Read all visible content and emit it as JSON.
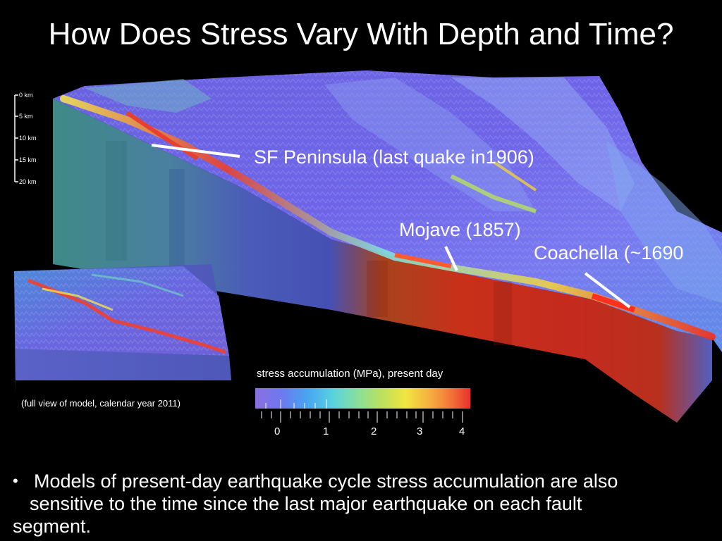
{
  "slide": {
    "title": "How Does Stress Vary With Depth and Time?",
    "depth_scale": [
      "0 km",
      "5 km",
      "10 km",
      "15 km",
      "20 km"
    ],
    "callouts": {
      "sf": "SF Peninsula (last quake in1906)",
      "mojave": "Mojave (1857)",
      "coachella": "Coachella (~1690"
    },
    "inset_caption": "(full view of model, calendar year 2011)",
    "colorbar": {
      "title": "stress accumulation (MPa), present day",
      "ticks": [
        "0",
        "1",
        "2",
        "3",
        "4"
      ],
      "colors": [
        "#8a6fe0",
        "#5a7cf0",
        "#3fa0f0",
        "#52d0e8",
        "#8ae0a0",
        "#b8e060",
        "#f0e640",
        "#f6b340",
        "#f07a38",
        "#e83a30"
      ]
    },
    "bullet": {
      "line1": "Models of present-day earthquake cycle stress accumulation are also",
      "line2": "sensitive to the time since the last major earthquake on each fault",
      "line3": "segment."
    }
  }
}
